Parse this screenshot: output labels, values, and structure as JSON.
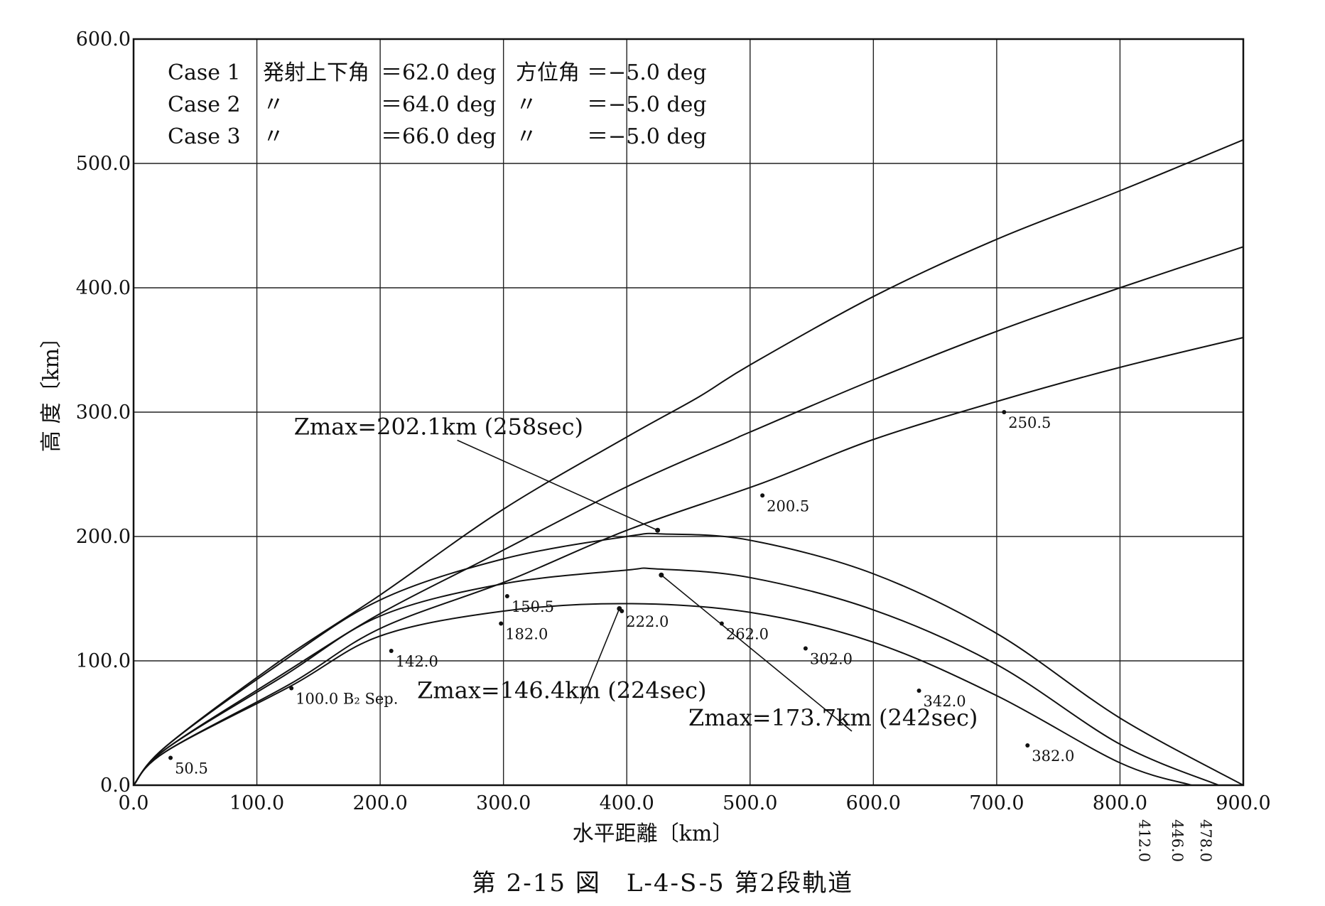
{
  "chart_data": {
    "type": "line",
    "caption": "第 2-15 図　L-4-S-5 第2段軌道",
    "xlabel": "水平距離〔km〕",
    "ylabel": "高 度〔km〕",
    "xlim": [
      0,
      900
    ],
    "ylim": [
      0,
      600
    ],
    "grid": true,
    "x_ticks": [
      "0.0",
      "100.0",
      "200.0",
      "300.0",
      "400.0",
      "500.0",
      "600.0",
      "700.0",
      "800.0",
      "900.0"
    ],
    "y_ticks": [
      "0.0",
      "100.0",
      "200.0",
      "300.0",
      "400.0",
      "500.0",
      "600.0"
    ],
    "legend": [
      {
        "case": "Case 1",
        "elev_label": "発射上下角",
        "elev_value": "＝62.0 deg",
        "az_label": "方位角",
        "az_value": "＝−5.0 deg"
      },
      {
        "case": "Case 2",
        "elev_label": "〃",
        "elev_value": "＝64.0 deg",
        "az_label": "〃",
        "az_value": "＝−5.0 deg"
      },
      {
        "case": "Case 3",
        "elev_label": "〃",
        "elev_value": "＝66.0 deg",
        "az_label": "〃",
        "az_value": "＝−5.0 deg"
      }
    ],
    "series": [
      {
        "name": "Case 1",
        "x": [
          0,
          26,
          116,
          200,
          300,
          400,
          458,
          500,
          600,
          700,
          800,
          900
        ],
        "y": [
          0,
          31,
          98,
          153,
          222,
          280,
          312,
          338,
          393,
          439,
          478,
          519
        ]
      },
      {
        "name": "Case 2",
        "x": [
          0,
          26,
          122,
          200,
          290,
          400,
          484,
          500,
          600,
          700,
          800,
          900
        ],
        "y": [
          0,
          29,
          90,
          138,
          184,
          240,
          277,
          284,
          326,
          365,
          400,
          433
        ]
      },
      {
        "name": "Case 3",
        "x": [
          0,
          26,
          128,
          200,
          305,
          400,
          510,
          600,
          705,
          800,
          900
        ],
        "y": [
          0,
          27,
          82,
          126,
          165,
          205,
          243,
          278,
          310,
          336,
          360
        ]
      },
      {
        "name": "Case 1 descent",
        "x": [
          0,
          26,
          116,
          200,
          300,
          400,
          430,
          500,
          600,
          700,
          800,
          900
        ],
        "y": [
          0,
          31,
          96,
          149,
          182,
          200,
          202,
          197,
          170,
          122,
          54,
          0
        ]
      },
      {
        "name": "Case 2 descent",
        "x": [
          0,
          26,
          122,
          200,
          300,
          400,
          423,
          500,
          600,
          700,
          800,
          880
        ],
        "y": [
          0,
          29,
          88,
          136,
          162,
          173,
          174,
          167,
          141,
          97,
          33,
          0
        ]
      },
      {
        "name": "Case 3 descent",
        "x": [
          0,
          26,
          128,
          200,
          300,
          400,
          500,
          600,
          700,
          800,
          858
        ],
        "y": [
          0,
          27,
          80,
          120,
          140,
          146,
          139,
          115,
          72,
          18,
          0
        ]
      }
    ],
    "time_marks": [
      {
        "label": "50.5",
        "x": 30,
        "y": 22
      },
      {
        "label": "100.0 B₂ Sep.",
        "x": 128,
        "y": 78
      },
      {
        "label": "142.0",
        "x": 209,
        "y": 108
      },
      {
        "label": "150.5",
        "x": 303,
        "y": 152
      },
      {
        "label": "182.0",
        "x": 298,
        "y": 130
      },
      {
        "label": "222.0",
        "x": 396,
        "y": 140
      },
      {
        "label": "262.0",
        "x": 477,
        "y": 130
      },
      {
        "label": "302.0",
        "x": 545,
        "y": 110
      },
      {
        "label": "342.0",
        "x": 637,
        "y": 76
      },
      {
        "label": "382.0",
        "x": 725,
        "y": 32
      },
      {
        "label": "200.5",
        "x": 510,
        "y": 233
      },
      {
        "label": "250.5",
        "x": 706,
        "y": 300
      }
    ],
    "impact_labels": [
      {
        "label": "412.0",
        "x": 812
      },
      {
        "label": "446.0",
        "x": 839
      },
      {
        "label": "478.0",
        "x": 862
      }
    ],
    "annotations": [
      {
        "text": "Zmax=202.1km (258sec)",
        "label_x": 130,
        "label_y": 282,
        "tip_x": 425,
        "tip_y": 205
      },
      {
        "text": "Zmax=146.4km (224sec)",
        "label_x": 230,
        "label_y": 70,
        "tip_x": 394,
        "tip_y": 142
      },
      {
        "text": "Zmax=173.7km (242sec)",
        "label_x": 450,
        "label_y": 48,
        "tip_x": 428,
        "tip_y": 169
      }
    ]
  }
}
